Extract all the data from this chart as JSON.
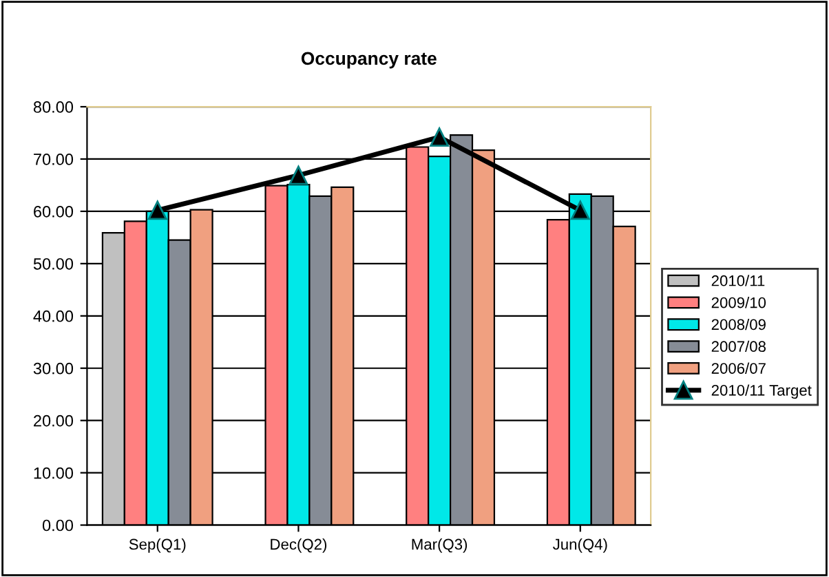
{
  "chart_data": {
    "type": "bar",
    "title": "Occupancy rate",
    "categories": [
      "Sep(Q1)",
      "Dec(Q2)",
      "Mar(Q3)",
      "Jun(Q4)"
    ],
    "series": [
      {
        "name": "2010/11",
        "color": "#c0c0c0",
        "values": [
          55.9,
          null,
          null,
          null
        ]
      },
      {
        "name": "2009/10",
        "color": "#ff8080",
        "values": [
          58.1,
          64.9,
          72.3,
          58.4
        ]
      },
      {
        "name": "2008/09",
        "color": "#00e8e8",
        "values": [
          60.0,
          65.1,
          70.5,
          63.3
        ]
      },
      {
        "name": "2007/08",
        "color": "#868c96",
        "values": [
          54.5,
          62.9,
          74.6,
          62.9
        ]
      },
      {
        "name": "2006/07",
        "color": "#f0a080",
        "values": [
          60.3,
          64.6,
          71.7,
          57.1
        ]
      },
      {
        "name": "2010/11 Target",
        "type": "line",
        "color": "#000000",
        "marker": "triangle",
        "values": [
          60.2,
          66.9,
          74.2,
          60.2
        ]
      }
    ],
    "ylim": [
      0,
      80
    ],
    "yticks": [
      {
        "value": 0,
        "label": "0.00"
      },
      {
        "value": 10,
        "label": "10.00"
      },
      {
        "value": 20,
        "label": "20.00"
      },
      {
        "value": 30,
        "label": "30.00"
      },
      {
        "value": 40,
        "label": "40.00"
      },
      {
        "value": 50,
        "label": "50.00"
      },
      {
        "value": 60,
        "label": "60.00"
      },
      {
        "value": 70,
        "label": "70.00"
      },
      {
        "value": 80,
        "label": "80.00"
      }
    ],
    "grid": "y",
    "legend": "right"
  }
}
